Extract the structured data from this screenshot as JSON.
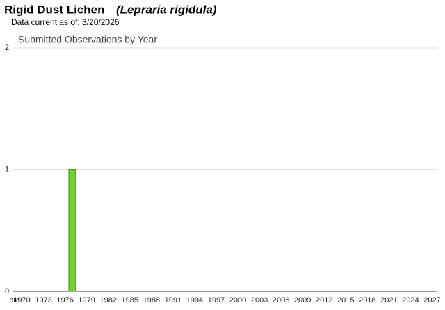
{
  "chart_data": {
    "type": "bar",
    "title": "Rigid Dust Lichen",
    "scientific_name": "(Lepraria rigidula)",
    "subtitle": "Data current as of: 3/20/2026",
    "chart_title": "Submitted Observations by Year",
    "categories": [
      "pre",
      "1970",
      null,
      null,
      "1973",
      null,
      null,
      "1976",
      null,
      null,
      "1979",
      null,
      null,
      "1982",
      null,
      null,
      "1985",
      null,
      null,
      "1988",
      null,
      null,
      "1991",
      null,
      null,
      "1994",
      null,
      null,
      "1997",
      null,
      null,
      "2000",
      null,
      null,
      "2003",
      null,
      null,
      "2006",
      null,
      null,
      "2009",
      null,
      null,
      "2012",
      null,
      null,
      "2015",
      null,
      null,
      "2018",
      null,
      null,
      "2021",
      null,
      null,
      "2024",
      null,
      null,
      "2027"
    ],
    "values": [
      0,
      0,
      0,
      0,
      0,
      0,
      0,
      0,
      1,
      0,
      0,
      0,
      0,
      0,
      0,
      0,
      0,
      0,
      0,
      0,
      0,
      0,
      0,
      0,
      0,
      0,
      0,
      0,
      0,
      0,
      0,
      0,
      0,
      0,
      0,
      0,
      0,
      0,
      0,
      0,
      0,
      0,
      0,
      0,
      0,
      0,
      0,
      0,
      0,
      0,
      0,
      0,
      0,
      0,
      0,
      0,
      0,
      0,
      0
    ],
    "color": "#72d12c",
    "ylim": [
      0,
      2
    ],
    "yticks": [
      0,
      1,
      2
    ],
    "grid": true
  }
}
